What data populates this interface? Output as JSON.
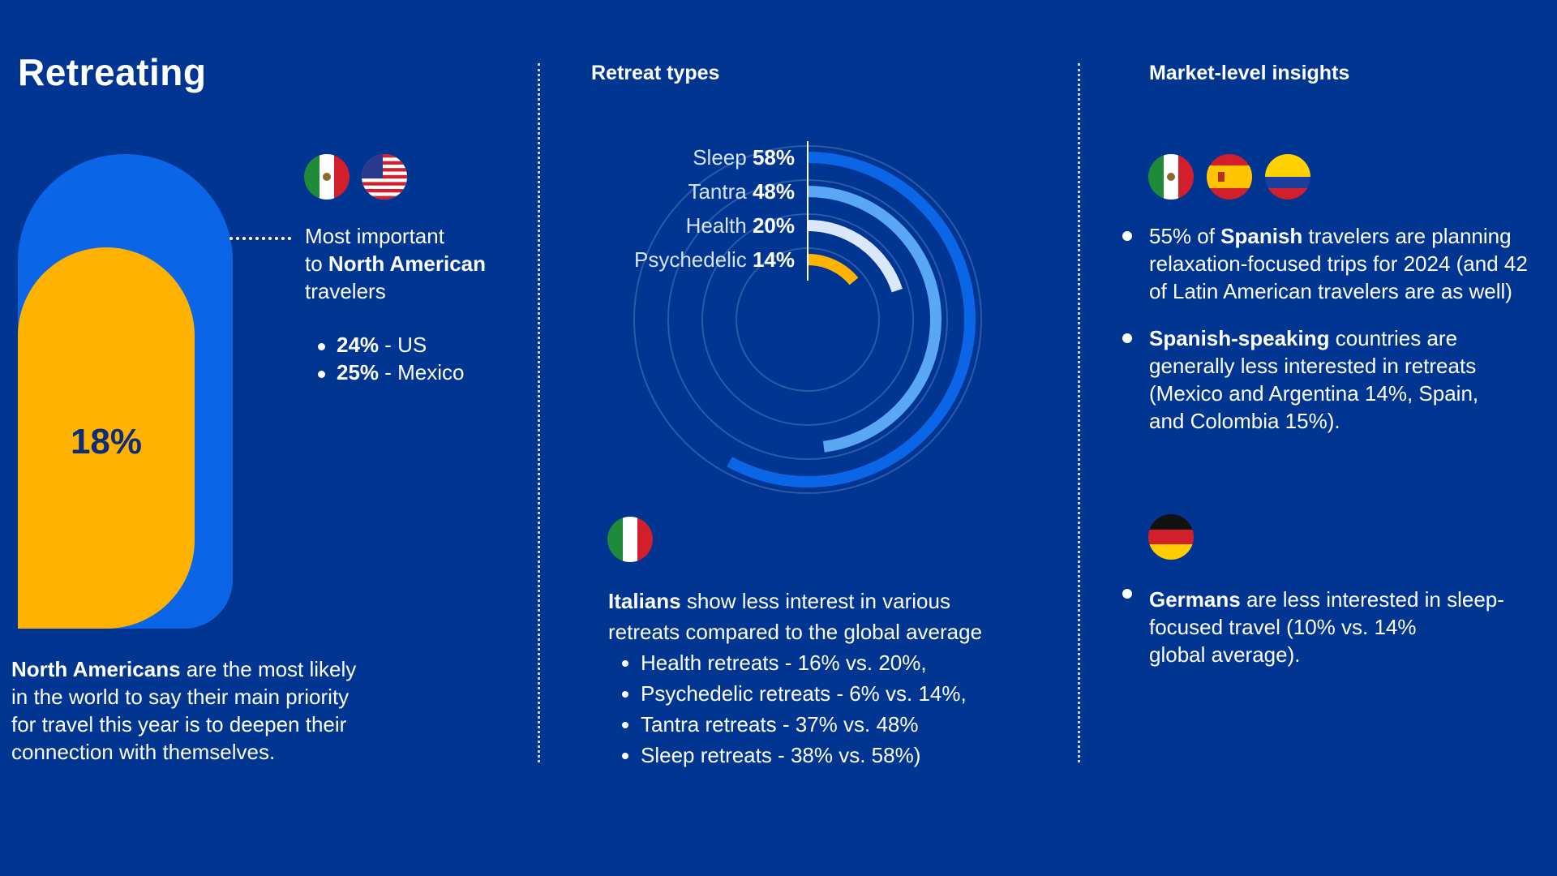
{
  "title": "Retreating",
  "left": {
    "stat_value": "18%",
    "callout": {
      "line1": "Most important",
      "line2_prefix": "to ",
      "line2_bold": "North American",
      "line3": "travelers"
    },
    "items": [
      {
        "value": "24%",
        "label": " - US"
      },
      {
        "value": "25%",
        "label": " - Mexico"
      }
    ],
    "footnote": {
      "bold": "North Americans",
      "rest_line1": " are the most likely",
      "line2": "in the world to say their main priority",
      "line3": "for travel this year is to deepen their",
      "line4": "connection with themselves."
    },
    "flags": [
      "mexico-flag",
      "usa-flag"
    ]
  },
  "middle": {
    "heading": "Retreat types",
    "italy_flag": "italy-flag",
    "italy_text": {
      "bold": "Italians",
      "rest_line1": " show less interest in various",
      "line2": "retreats compared to the global average"
    },
    "italy_items": [
      "Health retreats - 16% vs. 20%,",
      "Psychedelic retreats - 6% vs. 14%,",
      "Tantra retreats - 37% vs. 48%",
      "Sleep retreats - 38% vs. 58%)"
    ]
  },
  "right": {
    "heading": "Market-level insights",
    "flags": [
      "mexico-flag",
      "spain-flag",
      "colombia-flag"
    ],
    "bullets": [
      {
        "prefix": "55% of ",
        "bold": "Spanish",
        "rest": " travelers are planning",
        "line2": "relaxation-focused trips for 2024 (and 42",
        "line3": "of Latin American travelers are as well)"
      },
      {
        "prefix": "",
        "bold": "Spanish-speaking",
        "rest": " countries are",
        "line2": "generally less interested in retreats",
        "line3": "(Mexico and Argentina 14%, Spain,",
        "line4": "and Colombia 15%)."
      }
    ],
    "germany_flag": "germany-flag",
    "germany": {
      "bold": "Germans",
      "rest": " are less interested in sleep-",
      "line2": "focused travel (10% vs. 14%",
      "line3": "global average)."
    }
  },
  "colors": {
    "background": "#003592",
    "sleep": "#0a66e6",
    "tantra": "#5aa8f5",
    "health": "#dbe8fb",
    "psychedelic": "#ffb200",
    "accent_yellow": "#ffb200"
  },
  "chart_data": {
    "type": "radial-bar",
    "categories": [
      "Sleep",
      "Tantra",
      "Health",
      "Psychedelic"
    ],
    "values": [
      58,
      48,
      20,
      14
    ],
    "labels": [
      "58%",
      "48%",
      "20%",
      "14%"
    ],
    "max": 100,
    "unit": "%"
  }
}
